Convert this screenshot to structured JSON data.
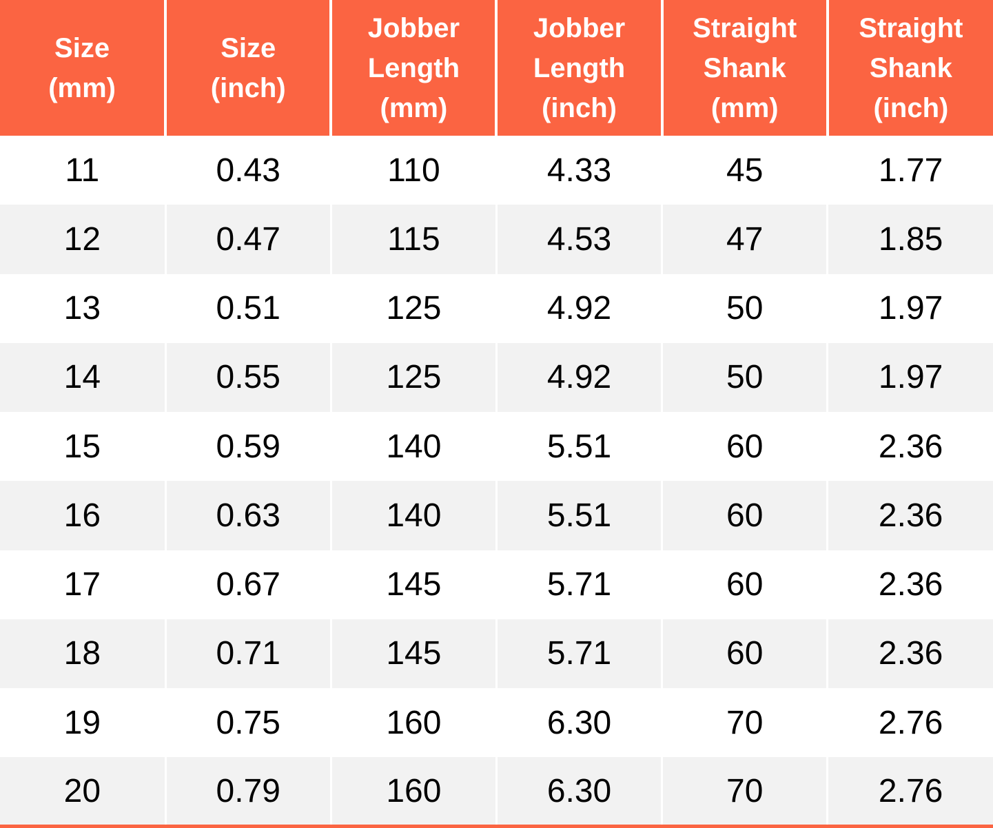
{
  "table": {
    "columns": [
      {
        "label": "Size\n(mm)"
      },
      {
        "label": "Size\n(inch)"
      },
      {
        "label": "Jobber\nLength\n(mm)"
      },
      {
        "label": "Jobber\nLength\n(inch)"
      },
      {
        "label": "Straight\nShank\n(mm)"
      },
      {
        "label": "Straight\nShank\n(inch)"
      }
    ],
    "rows": [
      [
        "11",
        "0.43",
        "110",
        "4.33",
        "45",
        "1.77"
      ],
      [
        "12",
        "0.47",
        "115",
        "4.53",
        "47",
        "1.85"
      ],
      [
        "13",
        "0.51",
        "125",
        "4.92",
        "50",
        "1.97"
      ],
      [
        "14",
        "0.55",
        "125",
        "4.92",
        "50",
        "1.97"
      ],
      [
        "15",
        "0.59",
        "140",
        "5.51",
        "60",
        "2.36"
      ],
      [
        "16",
        "0.63",
        "140",
        "5.51",
        "60",
        "2.36"
      ],
      [
        "17",
        "0.67",
        "145",
        "5.71",
        "60",
        "2.36"
      ],
      [
        "18",
        "0.71",
        "145",
        "5.71",
        "60",
        "2.36"
      ],
      [
        "19",
        "0.75",
        "160",
        "6.30",
        "70",
        "2.76"
      ],
      [
        "20",
        "0.79",
        "160",
        "6.30",
        "70",
        "2.76"
      ]
    ]
  },
  "colors": {
    "header_bg": "#FB6442",
    "header_text": "#FFFFFF",
    "row_bg": "#FFFFFF",
    "row_alt_bg": "#F2F2F2",
    "body_text": "#000000",
    "separator": "#FFFFFF",
    "bottom_border": "#FB6442"
  }
}
